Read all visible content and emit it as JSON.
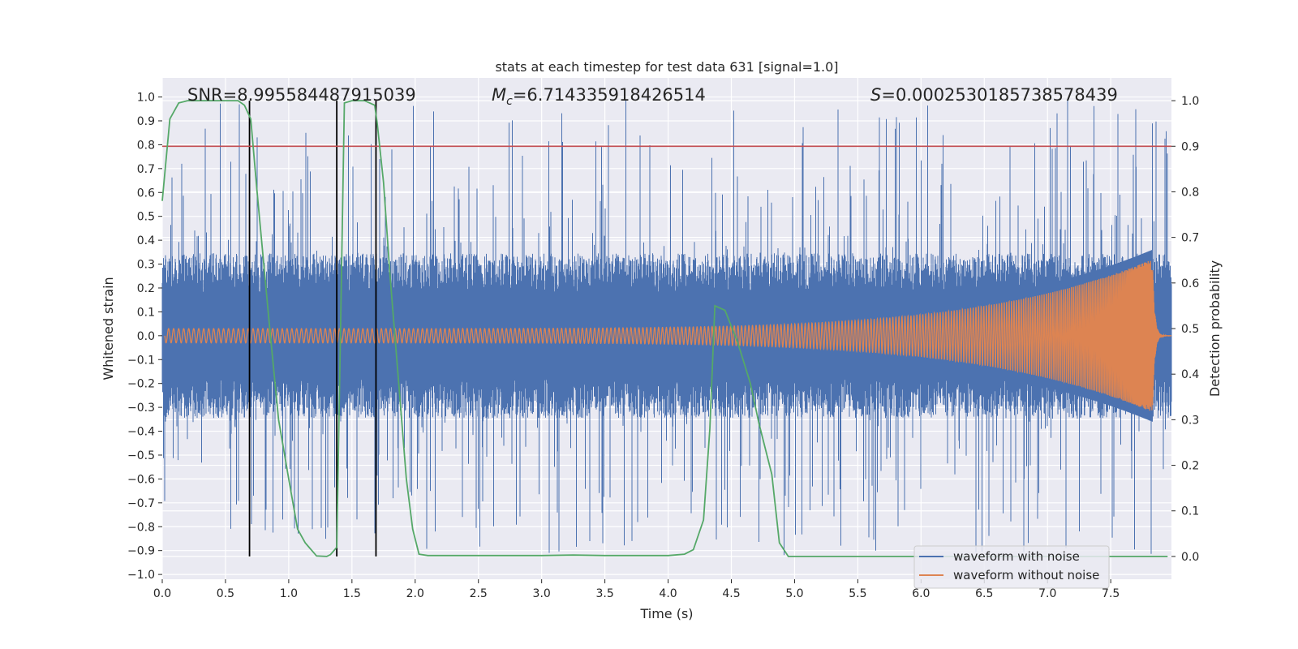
{
  "chart_data": {
    "type": "line",
    "title": "stats at each timestep for test data 631 [signal=1.0]",
    "xlabel": "Time (s)",
    "ylabel": "Whitened strain",
    "ylabel_right": "Detection probability",
    "xlim": [
      0.0,
      7.98
    ],
    "ylim": [
      -1.02,
      1.08
    ],
    "ylim_right": [
      -0.05,
      1.05
    ],
    "xticks": [
      "0.0",
      "0.5",
      "1.0",
      "1.5",
      "2.0",
      "2.5",
      "3.0",
      "3.5",
      "4.0",
      "4.5",
      "5.0",
      "5.5",
      "6.0",
      "6.5",
      "7.0",
      "7.5"
    ],
    "yticks": [
      "1.0",
      "0.9",
      "0.8",
      "0.7",
      "0.6",
      "0.5",
      "0.4",
      "0.3",
      "0.2",
      "0.1",
      "0.0",
      "−0.1",
      "−0.2",
      "−0.3",
      "−0.4",
      "−0.5",
      "−0.6",
      "−0.7",
      "−0.8",
      "−0.9",
      "−1.0"
    ],
    "yticks_right": [
      "1.0",
      "0.9",
      "0.8",
      "0.7",
      "0.6",
      "0.5",
      "0.4",
      "0.3",
      "0.2",
      "0.1",
      "0.0"
    ],
    "grid": true,
    "legend_position": "lower-right",
    "annotations": {
      "snr": "SNR=8.995584487915039",
      "mc_symbol": "M",
      "mc_sub": "c",
      "mc_value": "=6.714335918426514",
      "s_symbol": "S",
      "s_value": "=0.0002530185738578439"
    },
    "threshold": 0.9,
    "vlines": [
      0.69,
      1.38,
      1.69
    ],
    "noise_envelope": {
      "upper_typical": 0.3,
      "peak_max": 0.99,
      "lower_typical": -0.3,
      "trough_min": -0.92
    },
    "chirp": {
      "merger_time": 7.83,
      "peak_amplitude": 0.32,
      "start_amplitude": 0.03,
      "end_time": 7.98
    },
    "series": [
      {
        "name": "waveform with noise",
        "color": "#4c72b0"
      },
      {
        "name": "waveform without noise",
        "color": "#dd8452"
      },
      {
        "color": "#55a868",
        "x": [
          0.0,
          0.06,
          0.13,
          0.2,
          0.3,
          0.45,
          0.6,
          0.65,
          0.7,
          0.75,
          0.85,
          0.92,
          1.0,
          1.07,
          1.13,
          1.22,
          1.3,
          1.33,
          1.38,
          1.41,
          1.44,
          1.5,
          1.6,
          1.68,
          1.7,
          1.75,
          1.8,
          1.87,
          1.93,
          1.98,
          2.03,
          2.1,
          2.5,
          3.0,
          3.25,
          3.5,
          4.0,
          4.13,
          4.2,
          4.28,
          4.33,
          4.37,
          4.45,
          4.55,
          4.65,
          4.72,
          4.82,
          4.88,
          4.95,
          5.5,
          6.0,
          6.5,
          7.0,
          7.5,
          7.95
        ],
        "y": [
          0.78,
          0.96,
          0.995,
          1.0,
          1.0,
          1.0,
          1.0,
          0.99,
          0.96,
          0.8,
          0.5,
          0.3,
          0.17,
          0.06,
          0.03,
          0.001,
          0.0,
          0.004,
          0.02,
          0.5,
          0.995,
          1.0,
          1.0,
          0.99,
          0.95,
          0.82,
          0.62,
          0.38,
          0.17,
          0.06,
          0.005,
          0.002,
          0.002,
          0.002,
          0.003,
          0.002,
          0.002,
          0.005,
          0.015,
          0.08,
          0.28,
          0.55,
          0.54,
          0.47,
          0.38,
          0.29,
          0.18,
          0.03,
          0.0,
          0.0,
          0.0,
          0.0,
          0.0,
          0.0,
          0.0
        ]
      },
      {
        "color": "#c44e52",
        "name": "",
        "y_right": 0.9
      }
    ]
  }
}
